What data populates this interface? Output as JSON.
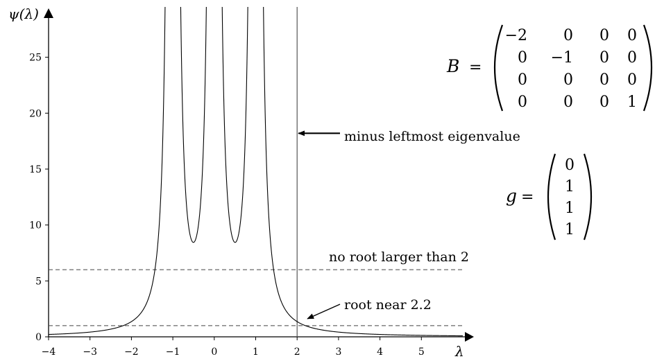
{
  "chart_data": {
    "type": "line",
    "title": "",
    "xlabel": "λ",
    "ylabel": "ψ(λ)",
    "xlim": [
      -4.0,
      6.0
    ],
    "ylim": [
      0,
      29.5
    ],
    "x_ticks": [
      -4,
      -3,
      -2,
      -1,
      0,
      1,
      2,
      3,
      4,
      5
    ],
    "x_tick_labels": [
      "−4",
      "−3",
      "−2",
      "−1",
      "0",
      "1",
      "2",
      "3",
      "4",
      "5"
    ],
    "y_ticks": [
      0,
      5,
      10,
      15,
      20,
      25
    ],
    "y_tick_labels": [
      "0",
      "5",
      "10",
      "15",
      "20",
      "25"
    ],
    "grid": false,
    "series": [
      {
        "function": "psi(lambda) = sum_i g_i^2 / (lambda + b_i)^2",
        "b": [
          -2,
          -1,
          0,
          1
        ],
        "g": [
          0,
          1,
          1,
          1
        ],
        "asymptotes_at": [
          -1,
          0,
          1
        ],
        "local_minima": [
          [
            -0.55,
            8.5
          ],
          [
            0.55,
            8.5
          ]
        ],
        "color": "#000000"
      }
    ],
    "horizontal_lines": [
      {
        "y": 6,
        "style": "dashed"
      },
      {
        "y": 1,
        "style": "dashed"
      }
    ],
    "vertical_lines": [
      {
        "x": 2,
        "style": "solid"
      }
    ],
    "annotations": [
      {
        "text": "minus leftmost eigenvalue",
        "arrow_to": [
          2,
          18.2
        ]
      },
      {
        "text": "no root larger than 2"
      },
      {
        "text": "root near 2.2",
        "arrow_to": [
          2.2,
          1.0
        ]
      }
    ]
  },
  "matrices": {
    "B": {
      "name": "B",
      "rows": [
        [
          "−2",
          "0",
          "0",
          "0"
        ],
        [
          "0",
          "−1",
          "0",
          "0"
        ],
        [
          "0",
          "0",
          "0",
          "0"
        ],
        [
          "0",
          "0",
          "0",
          "1"
        ]
      ]
    },
    "g": {
      "name": "g",
      "rows": [
        [
          "0"
        ],
        [
          "1"
        ],
        [
          "1"
        ],
        [
          "1"
        ]
      ]
    }
  },
  "colors": {
    "line": "#000000",
    "axis": "#000000",
    "vline": "#555555",
    "dash": "#444444"
  }
}
